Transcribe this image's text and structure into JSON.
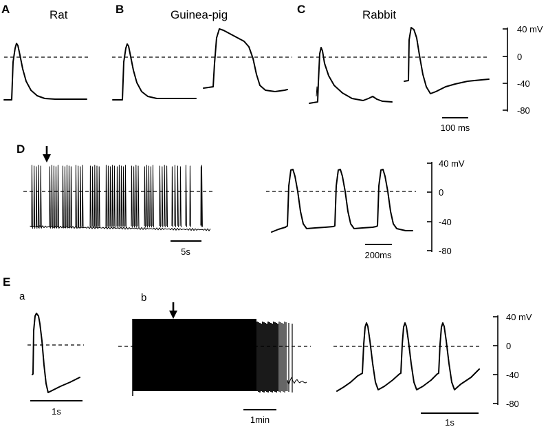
{
  "panels": {
    "A": {
      "letter": "A",
      "title": "Rat"
    },
    "B": {
      "letter": "B",
      "title": "Guinea-pig"
    },
    "C": {
      "letter": "C",
      "title": "Rabbit"
    },
    "D": {
      "letter": "D"
    },
    "E": {
      "letter": "E",
      "sub_a": "a",
      "sub_b": "b"
    }
  },
  "axes": {
    "top": {
      "ticks": [
        "40 mV",
        "0",
        "-40",
        "-80"
      ]
    },
    "middle": {
      "ticks": [
        "40 mV",
        "0",
        "-40",
        "-80"
      ]
    },
    "bottom": {
      "ticks": [
        "40 mV",
        "0",
        "-40",
        "-80"
      ]
    }
  },
  "scalebars": {
    "C": "100 ms",
    "D_train": "5s",
    "D_zoom": "200ms",
    "E_a": "1s",
    "E_b": "1min",
    "E_c": "1s"
  },
  "icons": {
    "arrow_D": "down-arrow-icon",
    "arrow_E": "down-arrow-icon"
  }
}
